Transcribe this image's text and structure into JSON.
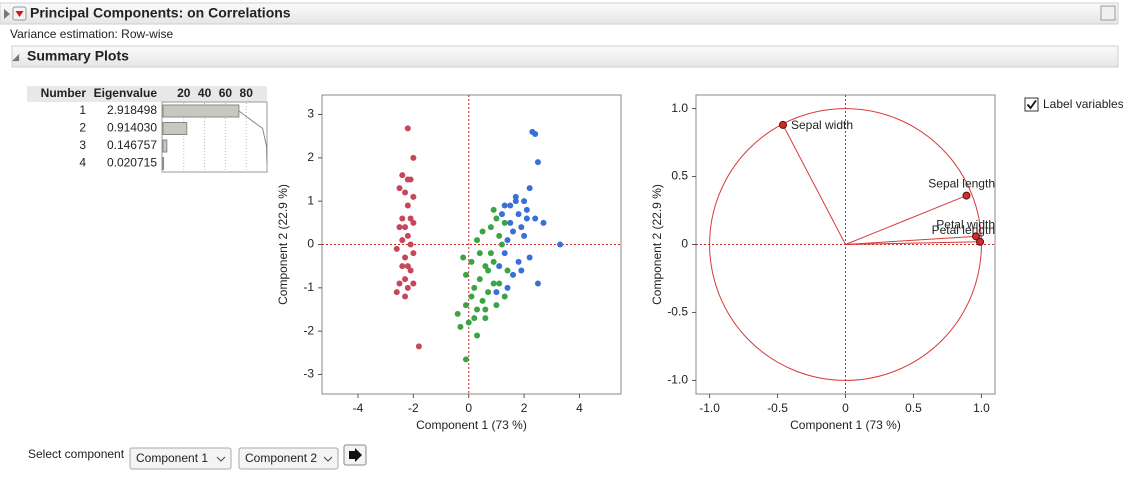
{
  "header": {
    "title": "Principal Components: on Correlations",
    "variance": "Variance estimation: Row-wise"
  },
  "summary": {
    "title": "Summary Plots"
  },
  "eigen_table": {
    "headers": [
      "Number",
      "Eigenvalue"
    ],
    "rows": [
      [
        "1",
        "2.918498"
      ],
      [
        "2",
        "0.914030"
      ],
      [
        "3",
        "0.146757"
      ],
      [
        "4",
        "0.020715"
      ]
    ]
  },
  "chart_data": [
    {
      "type": "bar",
      "orientation": "horizontal",
      "values": [
        72.96,
        22.85,
        3.67,
        0.52
      ],
      "cumulative": [
        72.96,
        95.81,
        99.48,
        100
      ],
      "xlim": [
        0,
        100
      ],
      "xticks": [
        20,
        40,
        60,
        80
      ],
      "color": "#c8c8c0",
      "grid": true
    },
    {
      "type": "scatter",
      "x_label": "Component 1  (73 %)",
      "y_label": "Component 2  (22.9 %)",
      "xlim": [
        -5.3,
        5.5
      ],
      "ylim": [
        -3.45,
        3.45
      ],
      "xticks": [
        -4,
        -2,
        0,
        2,
        4
      ],
      "yticks": [
        -3,
        -2,
        -1,
        0,
        1,
        2,
        3
      ],
      "zero_lines": true,
      "series": [
        {
          "color": "#c8465a",
          "x": [
            -2.2,
            -2.0,
            -2.4,
            -2.2,
            -2.1,
            -2.3,
            -2.0,
            -2.5,
            -2.2,
            -2.4,
            -2.1,
            -2.3,
            -2.5,
            -2.0,
            -2.2,
            -2.4,
            -2.1,
            -2.6,
            -2.3,
            -2.0,
            -2.2,
            -2.4,
            -2.1,
            -2.3,
            -2.5,
            -2.2,
            -2.6,
            -2.0,
            -2.3,
            -1.8
          ],
          "values": [
            2.68,
            2.0,
            1.6,
            1.5,
            1.5,
            1.2,
            1.1,
            1.3,
            0.9,
            0.6,
            0.6,
            0.4,
            0.4,
            0.5,
            0.2,
            0.1,
            0.0,
            -0.1,
            -0.3,
            -0.2,
            -0.5,
            -0.5,
            -0.6,
            -0.8,
            -0.9,
            -1.0,
            -1.1,
            -0.9,
            -1.2,
            -2.35
          ]
        },
        {
          "color": "#3ca444",
          "x": [
            0.9,
            1.0,
            1.3,
            0.5,
            1.1,
            0.3,
            1.2,
            -0.2,
            0.8,
            0.1,
            -0.1,
            0.6,
            0.4,
            0.9,
            0.2,
            0.7,
            0.5,
            0.3,
            1.4,
            0.2,
            1.0,
            0.6,
            1.3,
            0.9,
            0.7,
            0.8,
            1.1,
            0.4,
            0.1,
            -0.1,
            -0.3,
            -0.4,
            0.0,
            0.3,
            0.6,
            -0.1
          ],
          "values": [
            0.8,
            0.6,
            0.5,
            0.3,
            0.2,
            0.1,
            0.0,
            -0.3,
            -0.2,
            -0.4,
            -0.7,
            -0.5,
            -0.8,
            -0.9,
            -1.0,
            -1.1,
            -1.3,
            -1.5,
            -0.6,
            -1.7,
            -1.4,
            -1.7,
            -1.2,
            -0.4,
            -0.6,
            0.4,
            -0.9,
            -0.2,
            -1.2,
            -1.4,
            -1.9,
            -1.6,
            -1.8,
            -2.1,
            -1.5,
            -2.65
          ]
        },
        {
          "color": "#3a6fd8",
          "x": [
            2.3,
            2.4,
            2.5,
            1.7,
            2.0,
            2.2,
            1.5,
            1.8,
            2.4,
            1.9,
            1.2,
            1.6,
            2.1,
            1.4,
            2.7,
            3.3,
            2.0,
            1.3,
            1.8,
            1.1,
            1.6,
            2.5,
            1.4,
            1.9,
            2.2,
            1.0,
            1.7,
            1.3,
            1.5,
            2.1
          ],
          "values": [
            2.6,
            2.55,
            1.9,
            1.1,
            1.0,
            1.3,
            0.9,
            0.7,
            0.6,
            0.4,
            0.7,
            0.3,
            0.8,
            0.1,
            0.5,
            0.0,
            0.2,
            -0.2,
            -0.4,
            -0.5,
            -0.7,
            -0.9,
            -1.0,
            -0.6,
            -0.3,
            -1.1,
            1.0,
            0.9,
            0.5,
            0.6
          ]
        }
      ]
    },
    {
      "type": "scatter",
      "x_label": "Component 1  (73 %)",
      "y_label": "Component 2  (22.9 %)",
      "xlim": [
        -1.1,
        1.1
      ],
      "ylim": [
        -1.1,
        1.1
      ],
      "xticks": [
        {
          "value": -1,
          "label": "-1.0"
        },
        -0.5,
        0,
        0.5,
        {
          "value": 1,
          "label": "1.0"
        }
      ],
      "yticks": [
        {
          "value": -1,
          "label": "-1.0"
        },
        -0.5,
        0,
        0.5,
        {
          "value": 1,
          "label": "1.0"
        }
      ],
      "zero_lines": true,
      "unit_circle": true,
      "vectors": true,
      "series": [
        {
          "color": "#d42a2a",
          "x": [
            -0.46,
            0.89,
            0.96,
            0.99
          ],
          "values": [
            0.88,
            0.36,
            0.06,
            0.02
          ],
          "labels": [
            "Sepal width",
            "Sepal length",
            "Petal width",
            "Petal length"
          ]
        }
      ]
    }
  ],
  "controls": {
    "label_variables": "Label variables",
    "checked": true,
    "select_component": "Select component",
    "dropdowns": [
      "Component 1",
      "Component 2"
    ]
  }
}
